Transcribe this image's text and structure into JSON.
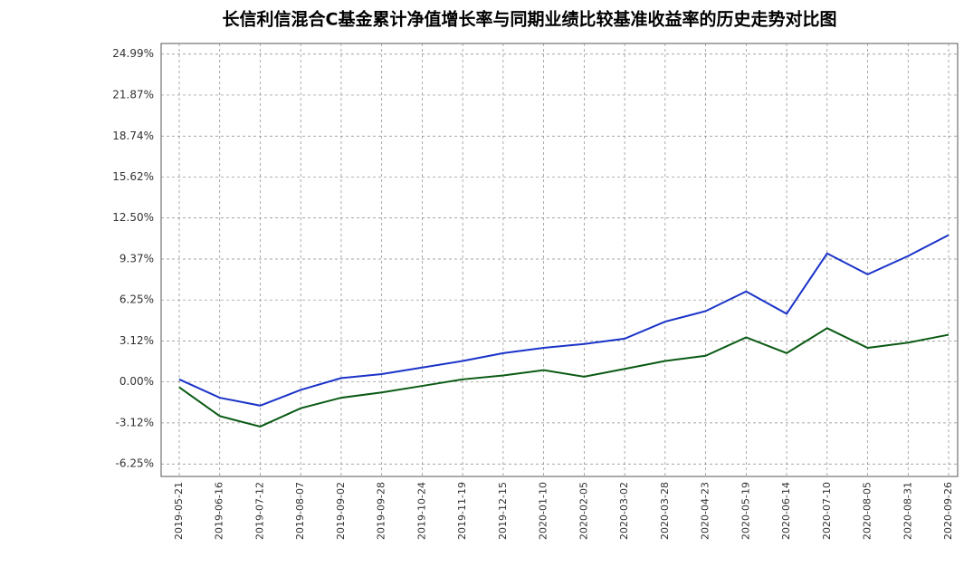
{
  "chart_data": {
    "type": "line",
    "title": "长信利信混合C基金累计净值增长率与同期业绩比较基准收益率的历史走势对比图",
    "categories": [
      "2019-05-21",
      "2019-06-16",
      "2019-07-12",
      "2019-08-07",
      "2019-09-02",
      "2019-09-28",
      "2019-10-24",
      "2019-11-19",
      "2019-12-15",
      "2020-01-10",
      "2020-02-05",
      "2020-03-02",
      "2020-03-28",
      "2020-04-23",
      "2020-05-19",
      "2020-06-14",
      "2020-07-10",
      "2020-08-05",
      "2020-08-31",
      "2020-09-26"
    ],
    "series": [
      {
        "color": "#1a33c8",
        "values": [
          0.2,
          -1.2,
          -1.8,
          -0.6,
          0.3,
          0.6,
          1.1,
          1.6,
          2.2,
          2.6,
          2.9,
          3.3,
          4.6,
          5.4,
          6.9,
          5.2,
          9.8,
          8.2,
          9.6,
          11.2
        ]
      },
      {
        "color": "#0a5a14",
        "values": [
          -0.4,
          -2.6,
          -3.4,
          -2.0,
          -1.2,
          -0.8,
          -0.3,
          0.2,
          0.5,
          0.9,
          0.4,
          1.0,
          1.6,
          2.0,
          3.4,
          2.2,
          4.1,
          2.6,
          3.0,
          3.6
        ]
      }
    ],
    "ylim": [
      -7.2,
      25.8
    ],
    "yticks": [
      {
        "value": 24.99,
        "label": "24.99%"
      },
      {
        "value": 21.87,
        "label": "21.87%"
      },
      {
        "value": 18.74,
        "label": "18.74%"
      },
      {
        "value": 15.62,
        "label": "15.62%"
      },
      {
        "value": 12.5,
        "label": "12.50%"
      },
      {
        "value": 9.37,
        "label": "9.37%"
      },
      {
        "value": 6.25,
        "label": "6.25%"
      },
      {
        "value": 3.12,
        "label": "3.12%"
      },
      {
        "value": 0,
        "label": "0.00%"
      },
      {
        "value": -3.12,
        "label": "-3.12%"
      },
      {
        "value": -6.25,
        "label": "-6.25%"
      }
    ],
    "grid": true
  }
}
